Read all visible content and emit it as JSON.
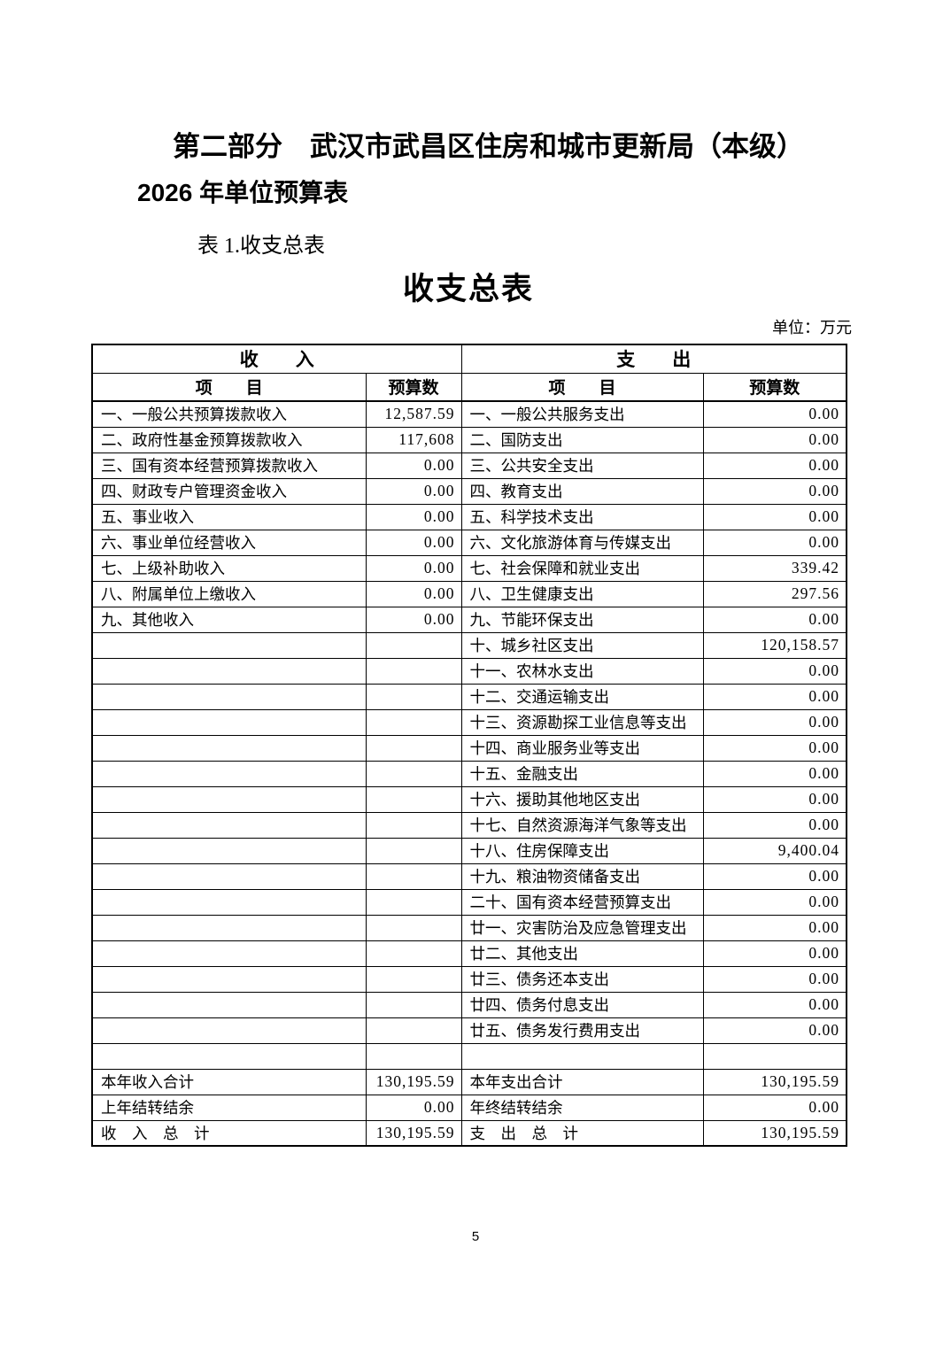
{
  "header": {
    "section_title": "第二部分　武汉市武昌区住房和城市更新局（本级）",
    "subtitle": "2026 年单位预算表",
    "table_caption": "表 1.收支总表",
    "table_title": "收支总表",
    "unit_label": "单位：万元"
  },
  "table": {
    "income_header": "收　　入",
    "expense_header": "支　　出",
    "item_header": "项　　目",
    "budget_header": "预算数",
    "rows": [
      {
        "income_item": "一、一般公共预算拨款收入",
        "income_value": "12,587.59",
        "expense_item": "一、一般公共服务支出",
        "expense_value": "0.00"
      },
      {
        "income_item": "二、政府性基金预算拨款收入",
        "income_value": "117,608",
        "expense_item": "二、国防支出",
        "expense_value": "0.00"
      },
      {
        "income_item": "三、国有资本经营预算拨款收入",
        "income_value": "0.00",
        "expense_item": "三、公共安全支出",
        "expense_value": "0.00"
      },
      {
        "income_item": "四、财政专户管理资金收入",
        "income_value": "0.00",
        "expense_item": "四、教育支出",
        "expense_value": "0.00"
      },
      {
        "income_item": "五、事业收入",
        "income_value": "0.00",
        "expense_item": "五、科学技术支出",
        "expense_value": "0.00"
      },
      {
        "income_item": "六、事业单位经营收入",
        "income_value": "0.00",
        "expense_item": "六、文化旅游体育与传媒支出",
        "expense_value": "0.00"
      },
      {
        "income_item": "七、上级补助收入",
        "income_value": "0.00",
        "expense_item": "七、社会保障和就业支出",
        "expense_value": "339.42"
      },
      {
        "income_item": "八、附属单位上缴收入",
        "income_value": "0.00",
        "expense_item": "八、卫生健康支出",
        "expense_value": "297.56"
      },
      {
        "income_item": "九、其他收入",
        "income_value": "0.00",
        "expense_item": "九、节能环保支出",
        "expense_value": "0.00"
      },
      {
        "income_item": "",
        "income_value": "",
        "expense_item": "十、城乡社区支出",
        "expense_value": "120,158.57"
      },
      {
        "income_item": "",
        "income_value": "",
        "expense_item": "十一、农林水支出",
        "expense_value": "0.00"
      },
      {
        "income_item": "",
        "income_value": "",
        "expense_item": "十二、交通运输支出",
        "expense_value": "0.00"
      },
      {
        "income_item": "",
        "income_value": "",
        "expense_item": "十三、资源勘探工业信息等支出",
        "expense_value": "0.00"
      },
      {
        "income_item": "",
        "income_value": "",
        "expense_item": "十四、商业服务业等支出",
        "expense_value": "0.00"
      },
      {
        "income_item": "",
        "income_value": "",
        "expense_item": "十五、金融支出",
        "expense_value": "0.00"
      },
      {
        "income_item": "",
        "income_value": "",
        "expense_item": "十六、援助其他地区支出",
        "expense_value": "0.00"
      },
      {
        "income_item": "",
        "income_value": "",
        "expense_item": "十七、自然资源海洋气象等支出",
        "expense_value": "0.00"
      },
      {
        "income_item": "",
        "income_value": "",
        "expense_item": "十八、住房保障支出",
        "expense_value": "9,400.04"
      },
      {
        "income_item": "",
        "income_value": "",
        "expense_item": "十九、粮油物资储备支出",
        "expense_value": "0.00"
      },
      {
        "income_item": "",
        "income_value": "",
        "expense_item": "二十、国有资本经营预算支出",
        "expense_value": "0.00"
      },
      {
        "income_item": "",
        "income_value": "",
        "expense_item": "廿一、灾害防治及应急管理支出",
        "expense_value": "0.00"
      },
      {
        "income_item": "",
        "income_value": "",
        "expense_item": "廿二、其他支出",
        "expense_value": "0.00"
      },
      {
        "income_item": "",
        "income_value": "",
        "expense_item": "廿三、债务还本支出",
        "expense_value": "0.00"
      },
      {
        "income_item": "",
        "income_value": "",
        "expense_item": "廿四、债务付息支出",
        "expense_value": "0.00"
      },
      {
        "income_item": "",
        "income_value": "",
        "expense_item": "廿五、债务发行费用支出",
        "expense_value": "0.00"
      },
      {
        "income_item": "",
        "income_value": "",
        "expense_item": "",
        "expense_value": ""
      }
    ],
    "summary_rows": [
      {
        "income_item": "本年收入合计",
        "income_value": "130,195.59",
        "expense_item": "本年支出合计",
        "expense_value": "130,195.59"
      },
      {
        "income_item": "上年结转结余",
        "income_value": "0.00",
        "expense_item": "年终结转结余",
        "expense_value": "0.00"
      },
      {
        "income_item": "收　入　总　计",
        "income_value": "130,195.59",
        "expense_item": "支　出　总　计",
        "expense_value": "130,195.59"
      }
    ]
  },
  "footer": {
    "page_number": "5"
  }
}
